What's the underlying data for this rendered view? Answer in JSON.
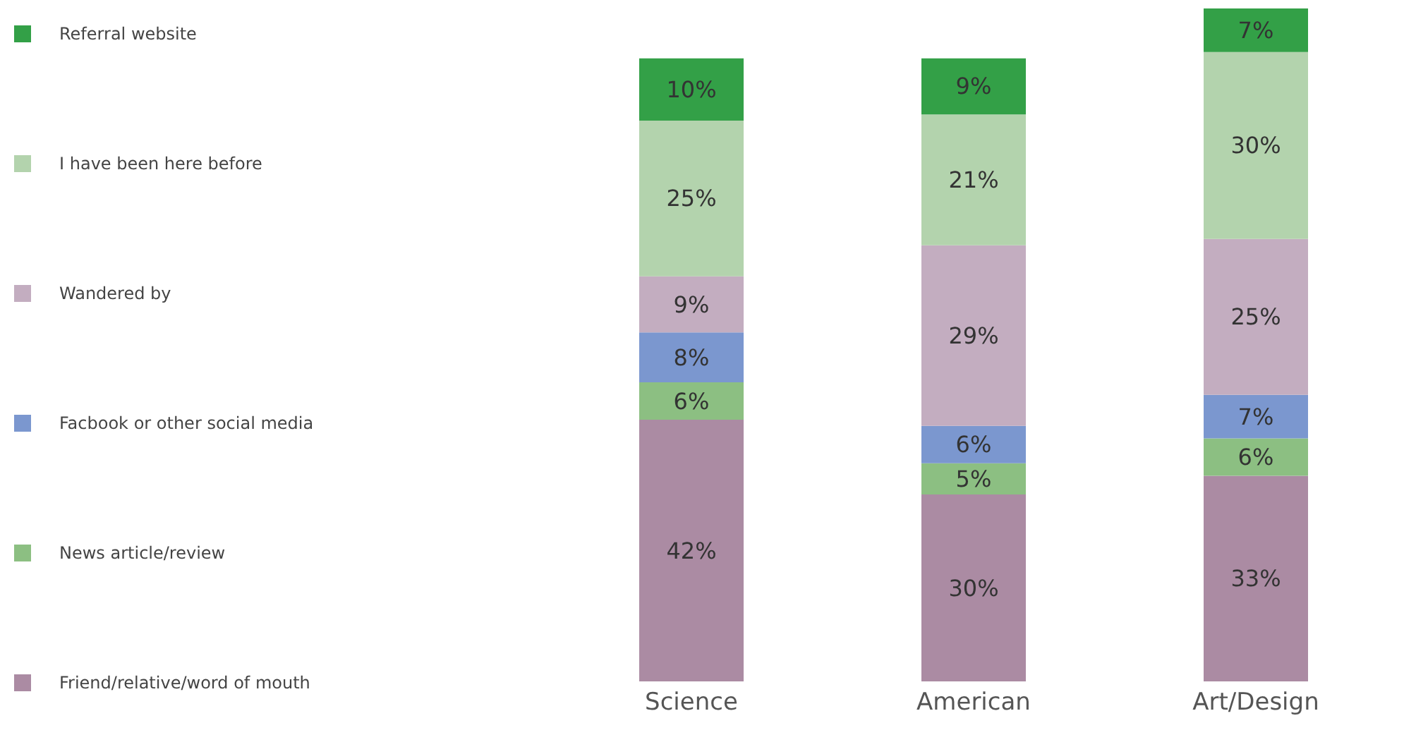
{
  "chart_data": {
    "type": "bar",
    "stacked": true,
    "categories": [
      "Science",
      "American",
      "Art/Design"
    ],
    "legend": "left",
    "series": [
      {
        "name": "Friend/relative/word of mouth",
        "color": "#ab8ba3",
        "values": [
          42,
          30,
          33
        ],
        "value_labels": [
          "42%",
          "30%",
          "33%"
        ]
      },
      {
        "name": "News article/review",
        "color": "#8cbf82",
        "values": [
          6,
          5,
          6
        ],
        "value_labels": [
          "6%",
          "5%",
          "6%"
        ]
      },
      {
        "name": "Facbook or other social media",
        "color": "#7b97cf",
        "values": [
          8,
          6,
          7
        ],
        "value_labels": [
          "8%",
          "6%",
          "7%"
        ]
      },
      {
        "name": "Wandered by",
        "color": "#c3adc0",
        "values": [
          9,
          29,
          25
        ],
        "value_labels": [
          "9%",
          "29%",
          "25%"
        ]
      },
      {
        "name": "I have been here before",
        "color": "#b3d3ad",
        "values": [
          25,
          21,
          30
        ],
        "value_labels": [
          "25%",
          "21%",
          "30%"
        ]
      },
      {
        "name": "Referral website",
        "color": "#33a047",
        "values": [
          10,
          9,
          7
        ],
        "value_labels": [
          "10%",
          "9%",
          "7%"
        ]
      }
    ]
  }
}
